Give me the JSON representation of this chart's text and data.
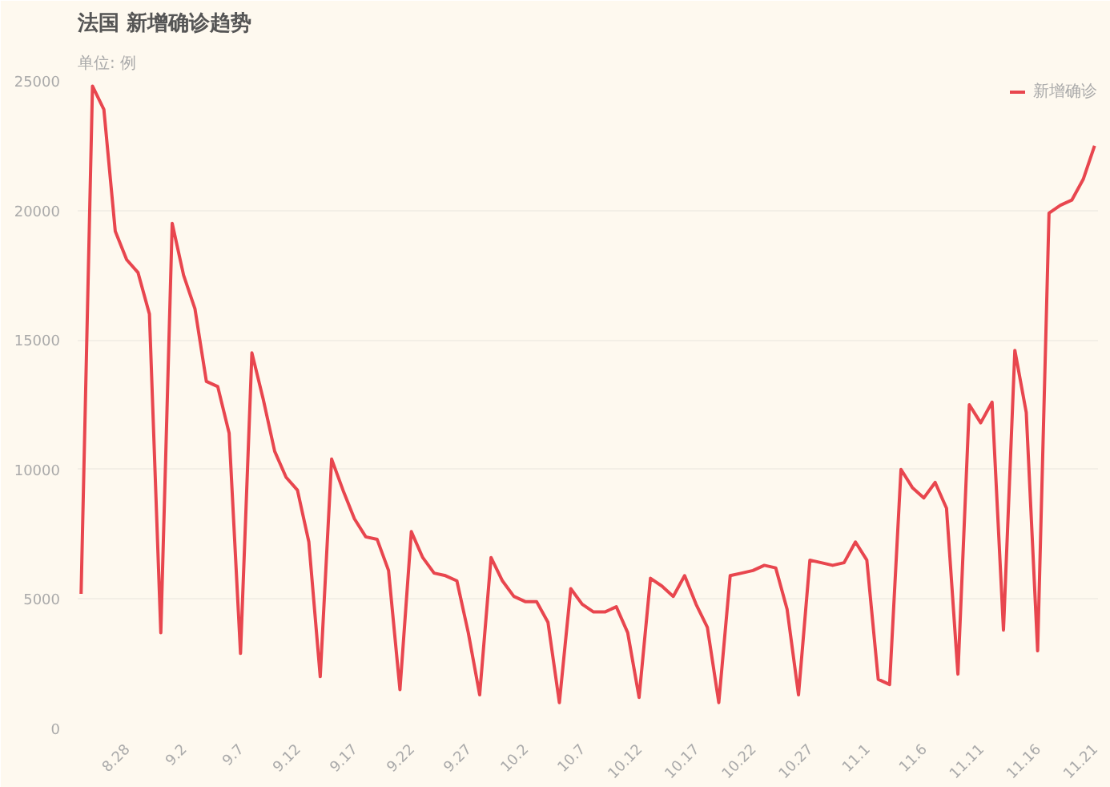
{
  "chart_data": {
    "type": "line",
    "title": "法国 新增确诊趋势",
    "subtitle": "单位: 例",
    "categories": [
      null,
      null,
      null,
      null,
      "8.28",
      null,
      null,
      null,
      null,
      "9.2",
      null,
      null,
      null,
      null,
      "9.7",
      null,
      null,
      null,
      null,
      "9.12",
      null,
      null,
      null,
      null,
      "9.17",
      null,
      null,
      null,
      null,
      "9.22",
      null,
      null,
      null,
      null,
      "9.27",
      null,
      null,
      null,
      null,
      "10.2",
      null,
      null,
      null,
      null,
      "10.7",
      null,
      null,
      null,
      null,
      "10.12",
      null,
      null,
      null,
      null,
      "10.17",
      null,
      null,
      null,
      null,
      "10.22",
      null,
      null,
      null,
      null,
      "10.27",
      null,
      null,
      null,
      null,
      "11.1",
      null,
      null,
      null,
      null,
      "11.6",
      null,
      null,
      null,
      null,
      "11.11",
      null,
      null,
      null,
      null,
      "11.16",
      null,
      null,
      null,
      null,
      "11.21"
    ],
    "series": [
      {
        "name": "新增确诊",
        "color": "#e8464e",
        "values": [
          5200,
          24800,
          23900,
          19200,
          18100,
          17600,
          16000,
          3700,
          19500,
          17500,
          16200,
          13400,
          13200,
          11400,
          2900,
          14500,
          12700,
          10700,
          9700,
          9200,
          7200,
          2000,
          10400,
          9200,
          8100,
          7400,
          7300,
          6100,
          1500,
          7600,
          6600,
          6000,
          5900,
          5700,
          3700,
          1300,
          6600,
          5700,
          5100,
          4900,
          4900,
          4100,
          1000,
          5400,
          4800,
          4500,
          4500,
          4700,
          3700,
          1200,
          5800,
          5500,
          5100,
          5900,
          4800,
          3900,
          1000,
          5900,
          6000,
          6100,
          6300,
          6200,
          4600,
          1300,
          6500,
          6400,
          6300,
          6400,
          7200,
          6500,
          1900,
          1700,
          10000,
          9300,
          8900,
          9500,
          8500,
          2100,
          12500,
          11800,
          12600,
          3800,
          14600,
          12200,
          3000,
          19900,
          20200,
          20400,
          21200,
          22500
        ]
      }
    ],
    "ylim": [
      0,
      25000
    ],
    "yticks": [
      0,
      5000,
      10000,
      15000,
      20000,
      25000
    ],
    "grid": "y",
    "legend": "top right",
    "marker": "none",
    "line_style": "solid"
  }
}
